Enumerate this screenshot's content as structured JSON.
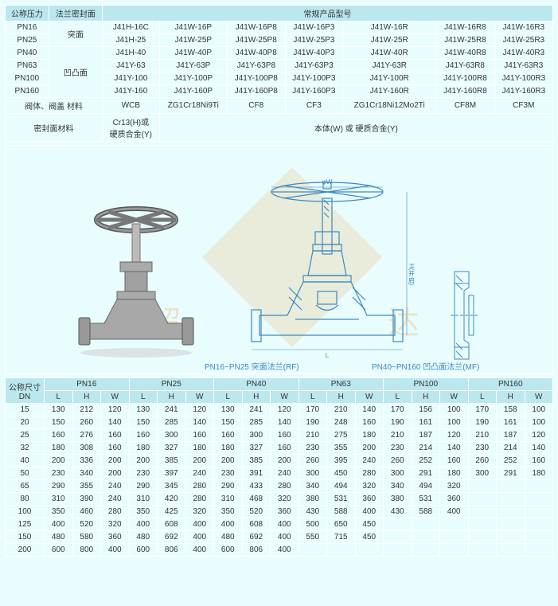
{
  "table1": {
    "headers": {
      "col1": "公称压力",
      "col2": "法兰密封面",
      "col3": "常规产品型号"
    },
    "rows": [
      {
        "p": "PN16",
        "f": "突面",
        "m": [
          "J41H-16C",
          "J41W-16P",
          "J41W-16P8",
          "J41W-16P3",
          "J41W-16R",
          "J41W-16R8",
          "J41W-16R3"
        ]
      },
      {
        "p": "PN25",
        "f": "",
        "m": [
          "J41H-25",
          "J41W-25P",
          "J41W-25P8",
          "J41W-25P3",
          "J41W-25R",
          "J41W-25R8",
          "J41W-25R3"
        ]
      },
      {
        "p": "PN40",
        "f": "凹凸面",
        "m": [
          "J41H-40",
          "J41W-40P",
          "J41W-40P8",
          "J41W-40P3",
          "J41W-40R",
          "J41W-40R8",
          "J41W-40R3"
        ]
      },
      {
        "p": "PN63",
        "f": "",
        "m": [
          "J41Y-63",
          "J41Y-63P",
          "J41Y-63P8",
          "J41Y-63P3",
          "J41Y-63R",
          "J41Y-63R8",
          "J41Y-63R3"
        ]
      },
      {
        "p": "PN100",
        "f": "",
        "m": [
          "J41Y-100",
          "J41Y-100P",
          "J41Y-100P8",
          "J41Y-100P3",
          "J41Y-100R",
          "J41Y-100R8",
          "J41Y-100R3"
        ]
      },
      {
        "p": "PN160",
        "f": "",
        "m": [
          "J41Y-160",
          "J41Y-160P",
          "J41Y-160P8",
          "J41Y-160P3",
          "J41Y-160R",
          "J41Y-160R8",
          "J41Y-160R3"
        ]
      }
    ],
    "mat1": {
      "label": "阀体、阀盖 材料",
      "v": [
        "WCB",
        "ZG1Cr18Ni9Ti",
        "CF8",
        "CF3",
        "ZG1Cr18Ni12Mo2Ti",
        "CF8M",
        "CF3M"
      ]
    },
    "mat2": {
      "label": "密封面材料",
      "v1": "Cr13(H)或\n硬质合金(Y)",
      "v2": "本体(W) 或 硬质合金(Y)"
    }
  },
  "diagram": {
    "caption1": "PN16~PN25 突面法兰(RF)",
    "caption2": "PN40~PN160 凹凸面法兰(MF)",
    "diagram_line_color": "#3b88c2",
    "photo_gray": "#a8a8a8",
    "watermark_left": "超",
    "watermark_right": "达"
  },
  "table2": {
    "dn_label": "公称尺寸\nDN",
    "groups": [
      "PN16",
      "PN25",
      "PN40",
      "PN63",
      "PN100",
      "PN160"
    ],
    "sub": [
      "L",
      "H",
      "W"
    ],
    "rows": [
      {
        "dn": "15",
        "v": [
          "130",
          "212",
          "120",
          "130",
          "241",
          "120",
          "130",
          "241",
          "120",
          "170",
          "210",
          "140",
          "170",
          "156",
          "100",
          "170",
          "158",
          "100"
        ]
      },
      {
        "dn": "20",
        "v": [
          "150",
          "260",
          "140",
          "150",
          "285",
          "140",
          "150",
          "285",
          "140",
          "190",
          "248",
          "160",
          "190",
          "161",
          "100",
          "190",
          "161",
          "100"
        ]
      },
      {
        "dn": "25",
        "v": [
          "160",
          "276",
          "160",
          "160",
          "300",
          "160",
          "160",
          "300",
          "160",
          "210",
          "275",
          "180",
          "210",
          "187",
          "120",
          "210",
          "187",
          "120"
        ]
      },
      {
        "dn": "32",
        "v": [
          "180",
          "308",
          "160",
          "180",
          "327",
          "180",
          "180",
          "327",
          "160",
          "230",
          "355",
          "200",
          "230",
          "214",
          "140",
          "230",
          "214",
          "140"
        ]
      },
      {
        "dn": "40",
        "v": [
          "200",
          "336",
          "200",
          "200",
          "385",
          "200",
          "200",
          "385",
          "200",
          "260",
          "395",
          "240",
          "260",
          "252",
          "160",
          "260",
          "252",
          "160"
        ]
      },
      {
        "dn": "50",
        "v": [
          "230",
          "340",
          "200",
          "230",
          "397",
          "240",
          "230",
          "391",
          "240",
          "300",
          "450",
          "280",
          "300",
          "291",
          "180",
          "300",
          "291",
          "180"
        ]
      },
      {
        "dn": "65",
        "v": [
          "290",
          "355",
          "240",
          "290",
          "345",
          "280",
          "290",
          "433",
          "280",
          "340",
          "494",
          "320",
          "340",
          "494",
          "320",
          "",
          "",
          ""
        ]
      },
      {
        "dn": "80",
        "v": [
          "310",
          "390",
          "240",
          "310",
          "420",
          "280",
          "310",
          "468",
          "320",
          "380",
          "531",
          "360",
          "380",
          "531",
          "360",
          "",
          "",
          ""
        ]
      },
      {
        "dn": "100",
        "v": [
          "350",
          "460",
          "280",
          "350",
          "425",
          "320",
          "350",
          "520",
          "360",
          "430",
          "588",
          "400",
          "430",
          "588",
          "400",
          "",
          "",
          ""
        ]
      },
      {
        "dn": "125",
        "v": [
          "400",
          "520",
          "320",
          "400",
          "608",
          "400",
          "400",
          "608",
          "400",
          "500",
          "650",
          "450",
          "",
          "",
          "",
          "",
          "",
          ""
        ]
      },
      {
        "dn": "150",
        "v": [
          "480",
          "580",
          "360",
          "480",
          "692",
          "400",
          "480",
          "692",
          "400",
          "550",
          "715",
          "450",
          "",
          "",
          "",
          "",
          "",
          ""
        ]
      },
      {
        "dn": "200",
        "v": [
          "600",
          "800",
          "400",
          "600",
          "806",
          "400",
          "600",
          "806",
          "400",
          "",
          "",
          "",
          "",
          "",
          "",
          "",
          "",
          ""
        ]
      }
    ]
  }
}
